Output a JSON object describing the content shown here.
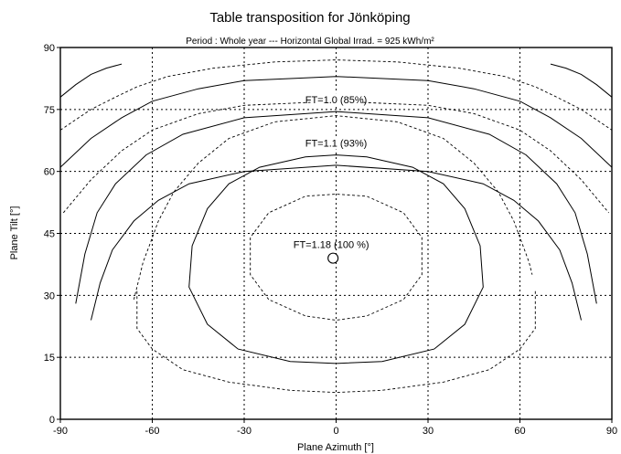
{
  "chart_data": {
    "type": "contour",
    "title": "Table transposition for Jönköping",
    "subtitle": "Period :  Whole year  ---  Horizontal Global Irrad. =  925 kWh/m²",
    "xlabel": "Plane Azimuth [°]",
    "ylabel": "Plane Tilt [°]",
    "xlim": [
      -90,
      90
    ],
    "ylim": [
      0,
      90
    ],
    "xticks": [
      "-90",
      "-60",
      "-30",
      "0",
      "30",
      "60",
      "90"
    ],
    "yticks": [
      "0",
      "15",
      "30",
      "45",
      "60",
      "75",
      "90"
    ],
    "grid": true,
    "optimum": {
      "azimuth": -1,
      "tilt": 39,
      "label": "FT=1.18 (100 %)"
    },
    "contours": [
      {
        "style": "dashed",
        "label": "",
        "points": [
          [
            -66,
            29
          ],
          [
            -64,
            35
          ],
          [
            -63,
            38
          ],
          [
            -61,
            42
          ],
          [
            -58,
            48
          ],
          [
            -53,
            55
          ],
          [
            -45,
            62
          ],
          [
            -35,
            68
          ],
          [
            -20,
            72
          ],
          [
            0,
            73.5
          ],
          [
            20,
            72
          ],
          [
            35,
            68
          ],
          [
            45,
            62
          ],
          [
            53,
            55
          ],
          [
            58,
            48
          ],
          [
            61,
            42
          ],
          [
            63,
            38
          ],
          [
            64,
            35
          ]
        ]
      },
      {
        "style": "dashed",
        "label": "",
        "points": [
          [
            -65,
            31
          ],
          [
            -65,
            22
          ],
          [
            -60,
            17
          ],
          [
            -50,
            12
          ],
          [
            -35,
            9
          ],
          [
            -15,
            7
          ],
          [
            0,
            6.5
          ],
          [
            15,
            7
          ],
          [
            35,
            9
          ],
          [
            50,
            12
          ],
          [
            60,
            17
          ],
          [
            65,
            22
          ],
          [
            65,
            31
          ]
        ]
      },
      {
        "style": "solid",
        "label": "",
        "points": [
          [
            -90,
            78
          ],
          [
            -85,
            81
          ],
          [
            -80,
            83.5
          ],
          [
            -75,
            85
          ],
          [
            -70,
            86
          ]
        ]
      },
      {
        "style": "solid",
        "label": "",
        "points": [
          [
            70,
            86
          ],
          [
            75,
            85
          ],
          [
            80,
            83.5
          ],
          [
            85,
            81
          ],
          [
            90,
            78
          ]
        ]
      },
      {
        "style": "dashed",
        "label": "",
        "points": [
          [
            -90,
            70
          ],
          [
            -80,
            75
          ],
          [
            -72,
            78
          ],
          [
            -65,
            80.5
          ],
          [
            -55,
            83
          ],
          [
            -40,
            85
          ],
          [
            -20,
            86.5
          ],
          [
            0,
            87
          ],
          [
            20,
            86.5
          ],
          [
            40,
            85
          ],
          [
            55,
            83
          ],
          [
            65,
            80.5
          ],
          [
            72,
            78
          ],
          [
            80,
            75
          ],
          [
            90,
            70
          ]
        ]
      },
      {
        "style": "solid",
        "label": "",
        "points": [
          [
            -90,
            61
          ],
          [
            -80,
            68
          ],
          [
            -70,
            73
          ],
          [
            -60,
            77
          ],
          [
            -45,
            80
          ],
          [
            -30,
            82
          ],
          [
            0,
            83
          ],
          [
            30,
            82
          ],
          [
            45,
            80
          ],
          [
            60,
            77
          ],
          [
            70,
            73
          ],
          [
            80,
            68
          ],
          [
            90,
            61
          ]
        ]
      },
      {
        "style": "dashed",
        "label": "",
        "points": [
          [
            -89,
            50
          ],
          [
            -80,
            58
          ],
          [
            -70,
            65
          ],
          [
            -60,
            70
          ],
          [
            -45,
            74
          ],
          [
            -30,
            76
          ],
          [
            0,
            77
          ],
          [
            30,
            76
          ],
          [
            45,
            74
          ],
          [
            60,
            70
          ],
          [
            70,
            65
          ],
          [
            80,
            58
          ],
          [
            89,
            50
          ]
        ]
      },
      {
        "style": "solid",
        "label": "FT=1.0 (85%)",
        "points": [
          [
            -85,
            28
          ],
          [
            -82,
            40
          ],
          [
            -78,
            50
          ],
          [
            -72,
            57
          ],
          [
            -62,
            64
          ],
          [
            -50,
            69
          ],
          [
            -30,
            73
          ],
          [
            0,
            74.5
          ],
          [
            30,
            73
          ],
          [
            50,
            69
          ],
          [
            62,
            64
          ],
          [
            72,
            57
          ],
          [
            78,
            50
          ],
          [
            82,
            40
          ],
          [
            85,
            28
          ]
        ]
      },
      {
        "style": "solid",
        "label": "",
        "points": [
          [
            -80,
            24
          ],
          [
            -77,
            33
          ],
          [
            -73,
            41
          ],
          [
            -66,
            48
          ],
          [
            -58,
            53
          ],
          [
            -48,
            57
          ],
          [
            -30,
            60
          ],
          [
            0,
            61.5
          ],
          [
            30,
            60
          ],
          [
            48,
            57
          ],
          [
            58,
            53
          ],
          [
            66,
            48
          ],
          [
            73,
            41
          ],
          [
            77,
            33
          ],
          [
            80,
            24
          ]
        ]
      },
      {
        "style": "solid",
        "label": "FT=1.1 (93%)",
        "points": [
          [
            -42,
            23
          ],
          [
            -48,
            32
          ],
          [
            -47,
            42
          ],
          [
            -42,
            51
          ],
          [
            -35,
            57
          ],
          [
            -25,
            61
          ],
          [
            -10,
            63.5
          ],
          [
            0,
            64
          ],
          [
            10,
            63.5
          ],
          [
            25,
            61
          ],
          [
            35,
            57
          ],
          [
            42,
            51
          ],
          [
            47,
            42
          ],
          [
            48,
            32
          ],
          [
            42,
            23
          ],
          [
            32,
            17
          ],
          [
            15,
            14
          ],
          [
            0,
            13.5
          ],
          [
            -15,
            14
          ],
          [
            -32,
            17
          ],
          [
            -42,
            23
          ]
        ]
      },
      {
        "style": "dashed",
        "label": "",
        "points": [
          [
            -22,
            29
          ],
          [
            -28,
            35
          ],
          [
            -28,
            44
          ],
          [
            -22,
            50
          ],
          [
            -10,
            54
          ],
          [
            0,
            54.5
          ],
          [
            10,
            54
          ],
          [
            22,
            50
          ],
          [
            28,
            44
          ],
          [
            28,
            35
          ],
          [
            22,
            29
          ],
          [
            10,
            25
          ],
          [
            0,
            24
          ],
          [
            -10,
            25
          ],
          [
            -22,
            29
          ]
        ]
      }
    ]
  }
}
